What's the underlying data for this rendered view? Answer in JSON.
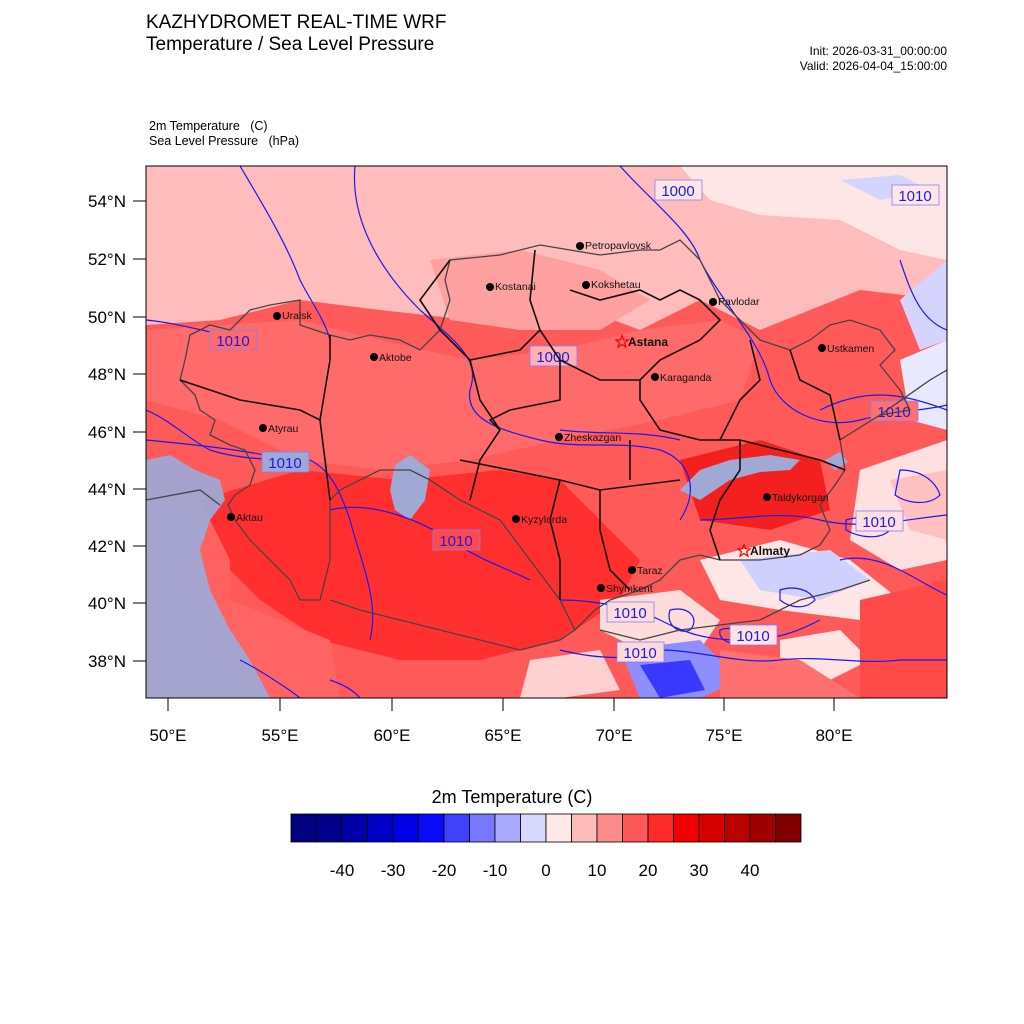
{
  "header": {
    "title_line1": "KAZHYDROMET REAL-TIME WRF",
    "title_line2": "Temperature / Sea Level Pressure",
    "init": "Init: 2026-03-31_00:00:00",
    "valid": "Valid: 2026-04-04_15:00:00"
  },
  "variables": {
    "temperature": "2m Temperature   (C)",
    "pressure": "Sea Level Pressure   (hPa)"
  },
  "axes": {
    "lat_labels": [
      "54°N",
      "52°N",
      "50°N",
      "48°N",
      "46°N",
      "44°N",
      "42°N",
      "40°N",
      "38°N"
    ],
    "lon_labels": [
      "50°E",
      "55°E",
      "60°E",
      "65°E",
      "70°E",
      "75°E",
      "80°E"
    ]
  },
  "colors": {
    "water": "#a0a8d4",
    "contour": "#1a1aee",
    "border": "#1e1e1e"
  },
  "cities": [
    {
      "name": "Petropavlovsk",
      "capital": false
    },
    {
      "name": "Kostanai",
      "capital": false
    },
    {
      "name": "Kokshetau",
      "capital": false
    },
    {
      "name": "Uralsk",
      "capital": false
    },
    {
      "name": "Pavlodar",
      "capital": false
    },
    {
      "name": "Astana",
      "capital": true
    },
    {
      "name": "Aktobe",
      "capital": false
    },
    {
      "name": "Ustkamen",
      "capital": false
    },
    {
      "name": "Karaganda",
      "capital": false
    },
    {
      "name": "Atyrau",
      "capital": false
    },
    {
      "name": "Zheskazgan",
      "capital": false
    },
    {
      "name": "Taldykorgan",
      "capital": false
    },
    {
      "name": "Aktau",
      "capital": false
    },
    {
      "name": "Kyzylorda",
      "capital": false
    },
    {
      "name": "Almaty",
      "capital": true
    },
    {
      "name": "Taraz",
      "capital": false
    },
    {
      "name": "Shymkent",
      "capital": false
    }
  ],
  "isobar_labels": [
    "1000",
    "1010",
    "1010",
    "1000",
    "1010",
    "1010",
    "1010",
    "1010",
    "1010",
    "1010",
    "1010"
  ],
  "colorbar": {
    "title": "2m Temperature  (C)",
    "colors": [
      "#000080",
      "#00008f",
      "#0000a8",
      "#0000c8",
      "#0000e6",
      "#0a0aff",
      "#4040ff",
      "#7878ff",
      "#a8a8ff",
      "#d8d8ff",
      "#ffe8e8",
      "#ffbaba",
      "#ff8a8a",
      "#ff5858",
      "#ff2a2a",
      "#f00000",
      "#d80000",
      "#bc0000",
      "#a00000",
      "#800000"
    ],
    "ticks": [
      "-40",
      "-30",
      "-20",
      "-10",
      "0",
      "10",
      "20",
      "30",
      "40"
    ]
  }
}
